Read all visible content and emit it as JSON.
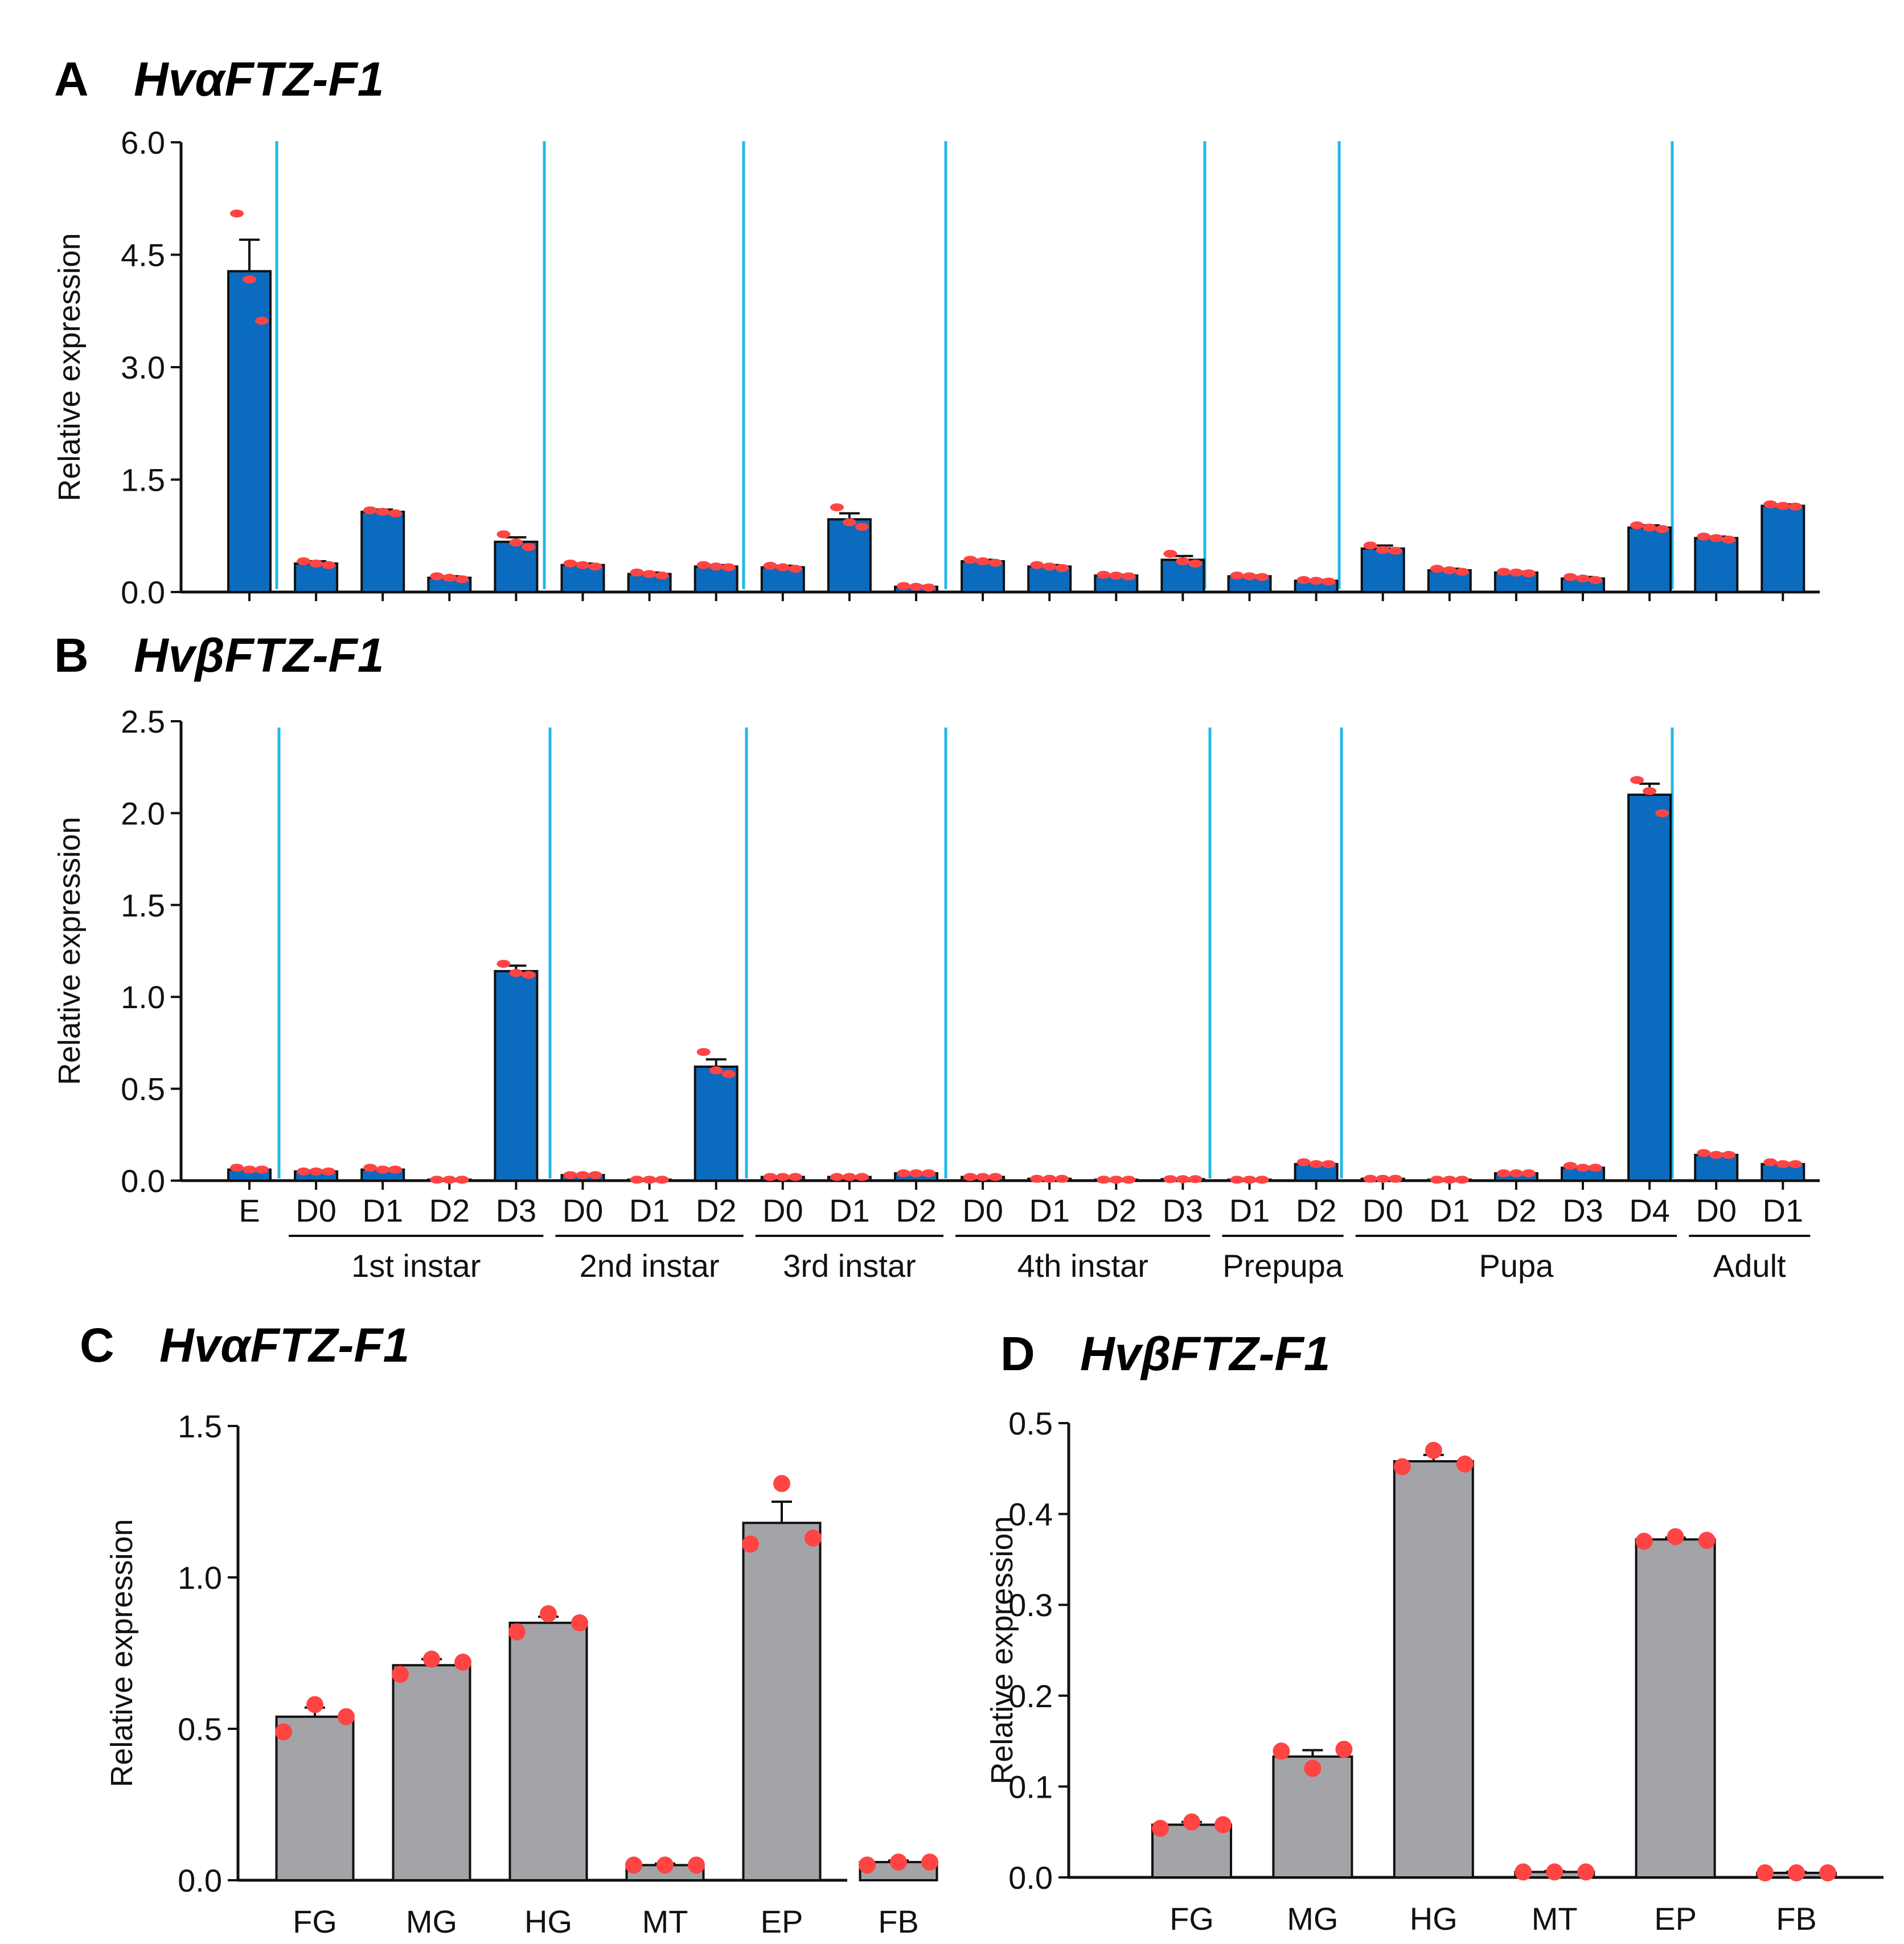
{
  "chart_data": [
    {
      "panel": "A",
      "title": "HvαFTZ-F1",
      "type": "bar",
      "ylabel": "Relative  expression",
      "ylim": [
        0,
        6.0
      ],
      "yticks": [
        "0.0",
        "1.5",
        "3.0",
        "4.5",
        "6.0"
      ],
      "bar_color": "#0b6bbf",
      "point_color": "#ff4444",
      "separator_color": "#22b8e8",
      "values": [
        4.28,
        0.38,
        1.07,
        0.19,
        0.67,
        0.36,
        0.24,
        0.34,
        0.33,
        0.97,
        0.07,
        0.41,
        0.34,
        0.22,
        0.43,
        0.21,
        0.15,
        0.58,
        0.29,
        0.26,
        0.18,
        0.86,
        0.72,
        1.15
      ],
      "errors": [
        0.42,
        0.03,
        0.03,
        0.02,
        0.06,
        0.02,
        0.02,
        0.02,
        0.02,
        0.08,
        0.01,
        0.02,
        0.02,
        0.01,
        0.05,
        0.01,
        0.01,
        0.04,
        0.02,
        0.01,
        0.02,
        0.03,
        0.02,
        0.02
      ],
      "points": [
        [
          5.05,
          4.17,
          3.62
        ],
        [
          0.41,
          0.38,
          0.36
        ],
        [
          1.09,
          1.07,
          1.05
        ],
        [
          0.21,
          0.19,
          0.17
        ],
        [
          0.77,
          0.66,
          0.6
        ],
        [
          0.38,
          0.36,
          0.34
        ],
        [
          0.26,
          0.24,
          0.22
        ],
        [
          0.36,
          0.34,
          0.33
        ],
        [
          0.35,
          0.33,
          0.31
        ],
        [
          1.13,
          0.93,
          0.87
        ],
        [
          0.08,
          0.07,
          0.06
        ],
        [
          0.43,
          0.41,
          0.39
        ],
        [
          0.36,
          0.34,
          0.32
        ],
        [
          0.23,
          0.22,
          0.21
        ],
        [
          0.51,
          0.41,
          0.38
        ],
        [
          0.22,
          0.21,
          0.2
        ],
        [
          0.16,
          0.15,
          0.14
        ],
        [
          0.62,
          0.56,
          0.55
        ],
        [
          0.31,
          0.29,
          0.27
        ],
        [
          0.27,
          0.26,
          0.25
        ],
        [
          0.2,
          0.18,
          0.16
        ],
        [
          0.89,
          0.86,
          0.84
        ],
        [
          0.74,
          0.72,
          0.7
        ],
        [
          1.17,
          1.15,
          1.14
        ]
      ]
    },
    {
      "panel": "B",
      "title": "HvβFTZ-F1",
      "type": "bar",
      "ylabel": "Relative  expression",
      "ylim": [
        0,
        2.5
      ],
      "yticks": [
        "0.0",
        "0.5",
        "1.0",
        "1.5",
        "2.0",
        "2.5"
      ],
      "bar_color": "#0b6bbf",
      "point_color": "#ff4444",
      "separator_color": "#22b8e8",
      "categories": [
        "E",
        "D0",
        "D1",
        "D2",
        "D3",
        "D0",
        "D1",
        "D2",
        "D0",
        "D1",
        "D2",
        "D0",
        "D1",
        "D2",
        "D3",
        "D1",
        "D2",
        "D0",
        "D1",
        "D2",
        "D3",
        "D4",
        "D0",
        "D1"
      ],
      "groups": [
        {
          "label": "1st  instar",
          "first": 1,
          "last": 4
        },
        {
          "label": "2nd instar",
          "first": 5,
          "last": 7
        },
        {
          "label": "3rd instar",
          "first": 8,
          "last": 10
        },
        {
          "label": "4th instar",
          "first": 11,
          "last": 14
        },
        {
          "label": "Prepupa",
          "first": 15,
          "last": 16
        },
        {
          "label": "Pupa",
          "first": 17,
          "last": 21
        },
        {
          "label": "Adult",
          "first": 22,
          "last": 23
        }
      ],
      "values": [
        0.06,
        0.05,
        0.06,
        0.005,
        1.14,
        0.03,
        0.005,
        0.62,
        0.02,
        0.02,
        0.04,
        0.02,
        0.01,
        0.005,
        0.008,
        0.005,
        0.09,
        0.01,
        0.005,
        0.04,
        0.07,
        2.1,
        0.14,
        0.09
      ],
      "errors": [
        0.005,
        0.005,
        0.005,
        0.002,
        0.03,
        0.003,
        0.002,
        0.04,
        0.002,
        0.002,
        0.003,
        0.002,
        0.002,
        0.002,
        0.002,
        0.002,
        0.005,
        0.002,
        0.002,
        0.003,
        0.005,
        0.06,
        0.006,
        0.005
      ],
      "points": [
        [
          0.07,
          0.06,
          0.06
        ],
        [
          0.05,
          0.05,
          0.05
        ],
        [
          0.07,
          0.06,
          0.06
        ],
        [
          0.005,
          0.005,
          0.005
        ],
        [
          1.18,
          1.13,
          1.12
        ],
        [
          0.03,
          0.03,
          0.03
        ],
        [
          0.005,
          0.005,
          0.005
        ],
        [
          0.7,
          0.6,
          0.58
        ],
        [
          0.02,
          0.02,
          0.02
        ],
        [
          0.02,
          0.02,
          0.02
        ],
        [
          0.04,
          0.04,
          0.04
        ],
        [
          0.02,
          0.02,
          0.02
        ],
        [
          0.01,
          0.01,
          0.01
        ],
        [
          0.005,
          0.005,
          0.005
        ],
        [
          0.008,
          0.008,
          0.008
        ],
        [
          0.005,
          0.005,
          0.005
        ],
        [
          0.1,
          0.09,
          0.09
        ],
        [
          0.01,
          0.01,
          0.01
        ],
        [
          0.005,
          0.005,
          0.005
        ],
        [
          0.04,
          0.04,
          0.04
        ],
        [
          0.08,
          0.07,
          0.07
        ],
        [
          2.18,
          2.12,
          2.0
        ],
        [
          0.15,
          0.14,
          0.14
        ],
        [
          0.1,
          0.09,
          0.09
        ]
      ]
    },
    {
      "panel": "C",
      "title": "HvαFTZ-F1",
      "type": "bar",
      "ylabel": "Relative  expression",
      "ylim": [
        0,
        1.5
      ],
      "yticks": [
        "0.0",
        "0.5",
        "1.0",
        "1.5"
      ],
      "bar_color": "#a3a4a8",
      "point_color": "#ff4444",
      "categories": [
        "FG",
        "MG",
        "HG",
        "MT",
        "EP",
        "FB"
      ],
      "values": [
        0.54,
        0.71,
        0.85,
        0.05,
        1.18,
        0.06
      ],
      "errors": [
        0.03,
        0.02,
        0.02,
        0.005,
        0.07,
        0.005
      ],
      "points": [
        [
          0.49,
          0.58,
          0.54
        ],
        [
          0.68,
          0.73,
          0.72
        ],
        [
          0.82,
          0.88,
          0.85
        ],
        [
          0.05,
          0.05,
          0.05
        ],
        [
          1.11,
          1.31,
          1.13
        ],
        [
          0.05,
          0.06,
          0.06
        ]
      ]
    },
    {
      "panel": "D",
      "title": "HvβFTZ-F1",
      "type": "bar",
      "ylabel": "Relative  expression",
      "ylim": [
        0,
        0.5
      ],
      "yticks": [
        "0.0",
        "0.1",
        "0.2",
        "0.3",
        "0.4",
        "0.5"
      ],
      "bar_color": "#a3a4a8",
      "point_color": "#ff4444",
      "categories": [
        "FG",
        "MG",
        "HG",
        "MT",
        "EP",
        "FB"
      ],
      "values": [
        0.058,
        0.133,
        0.458,
        0.006,
        0.372,
        0.005
      ],
      "errors": [
        0.003,
        0.007,
        0.007,
        0.001,
        0.002,
        0.001
      ],
      "points": [
        [
          0.054,
          0.061,
          0.058
        ],
        [
          0.139,
          0.12,
          0.141
        ],
        [
          0.452,
          0.47,
          0.455
        ],
        [
          0.006,
          0.006,
          0.006
        ],
        [
          0.37,
          0.375,
          0.371
        ],
        [
          0.005,
          0.005,
          0.005
        ]
      ]
    }
  ]
}
